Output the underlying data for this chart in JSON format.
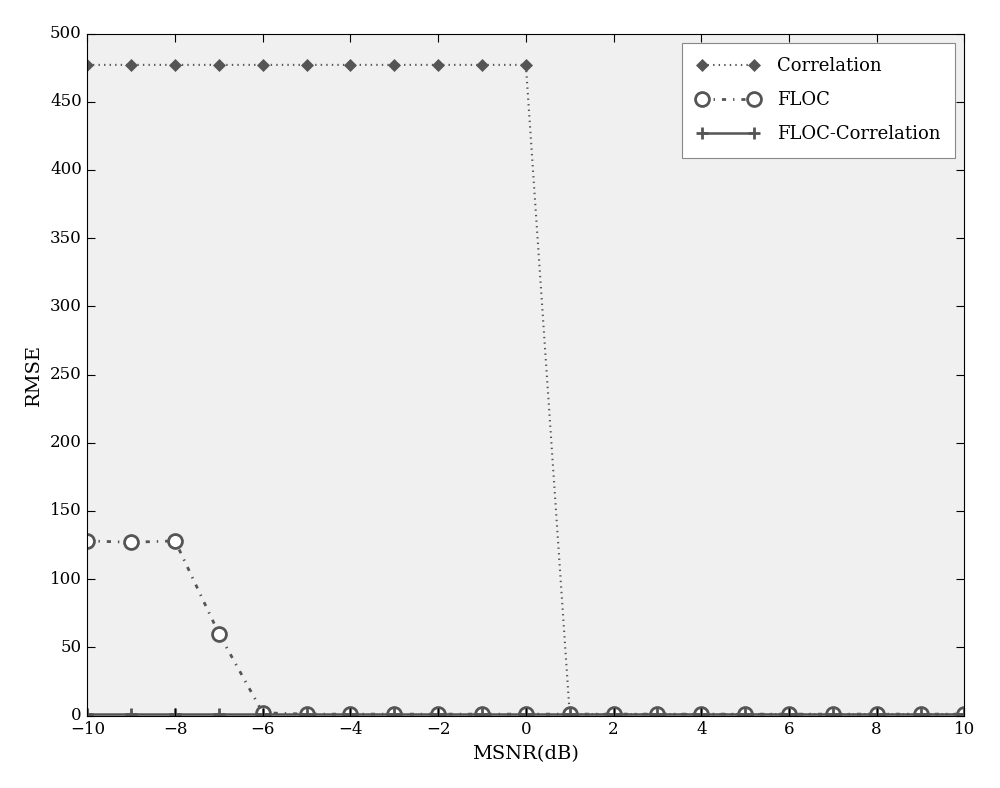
{
  "x_values": [
    -10,
    -9,
    -8,
    -7,
    -6,
    -5,
    -4,
    -3,
    -2,
    -1,
    0,
    1,
    2,
    3,
    4,
    5,
    6,
    7,
    8,
    9,
    10
  ],
  "correlation_y": [
    477,
    477,
    477,
    477,
    477,
    477,
    477,
    477,
    477,
    477,
    477,
    1,
    1,
    1,
    1,
    1,
    1,
    1,
    1,
    1,
    1
  ],
  "floc_y": [
    128,
    127,
    128,
    60,
    2,
    1,
    1,
    1,
    1,
    1,
    1,
    1,
    1,
    1,
    1,
    1,
    1,
    1,
    1,
    1,
    1
  ],
  "floc_corr_y": [
    1,
    1,
    1,
    1,
    1,
    1,
    1,
    1,
    1,
    1,
    1,
    1,
    1,
    1,
    1,
    1,
    1,
    1,
    1,
    1,
    1
  ],
  "xlabel": "MSNR(dB)",
  "ylabel": "RMSE",
  "xlim": [
    -10,
    10
  ],
  "ylim": [
    0,
    500
  ],
  "yticks": [
    0,
    50,
    100,
    150,
    200,
    250,
    300,
    350,
    400,
    450,
    500
  ],
  "xticks": [
    -10,
    -8,
    -6,
    -4,
    -2,
    0,
    2,
    4,
    6,
    8,
    10
  ],
  "legend_labels": [
    "Correlation",
    "FLOC",
    "FLOC-Correlation"
  ],
  "line_color": "#555555",
  "bg_color": "#f0f0f0",
  "plot_bg_color": "#f0f0f0",
  "fig_bg_color": "#f0f0f0",
  "figsize": [
    10.0,
    7.88
  ],
  "dpi": 100
}
